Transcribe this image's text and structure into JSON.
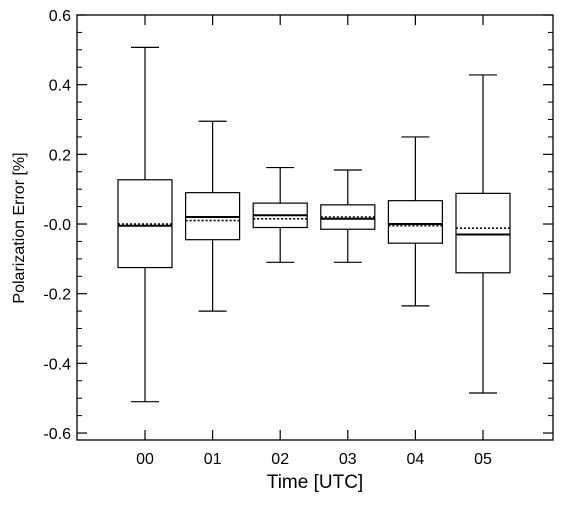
{
  "chart_data": {
    "type": "boxplot",
    "title": "",
    "xlabel": "Time [UTC]",
    "ylabel": "Polarization Error [%]",
    "ylim": [
      -0.62,
      0.6
    ],
    "yticks": [
      0.6,
      0.4,
      0.2,
      0.0,
      -0.2,
      -0.4,
      -0.6
    ],
    "ytick_labels": [
      "0.6",
      "0.4",
      "0.2",
      "-0.0",
      "-0.2",
      "-0.4",
      "-0.6"
    ],
    "y_minor_step": 0.05,
    "grid": false,
    "legend": "none",
    "categories": [
      "00",
      "01",
      "02",
      "03",
      "04",
      "05"
    ],
    "boxes": [
      {
        "category": "00",
        "whisker_low": -0.51,
        "q1": -0.125,
        "median": -0.005,
        "mean": 0.0,
        "q3": 0.127,
        "whisker_high": 0.507
      },
      {
        "category": "01",
        "whisker_low": -0.25,
        "q1": -0.045,
        "median": 0.02,
        "mean": 0.01,
        "q3": 0.09,
        "whisker_high": 0.295
      },
      {
        "category": "02",
        "whisker_low": -0.11,
        "q1": -0.01,
        "median": 0.025,
        "mean": 0.015,
        "q3": 0.06,
        "whisker_high": 0.162
      },
      {
        "category": "03",
        "whisker_low": -0.11,
        "q1": -0.015,
        "median": 0.015,
        "mean": 0.02,
        "q3": 0.055,
        "whisker_high": 0.155
      },
      {
        "category": "04",
        "whisker_low": -0.235,
        "q1": -0.055,
        "median": 0.0,
        "mean": -0.005,
        "q3": 0.067,
        "whisker_high": 0.25
      },
      {
        "category": "05",
        "whisker_low": -0.485,
        "q1": -0.14,
        "median": -0.03,
        "mean": -0.012,
        "q3": 0.088,
        "whisker_high": 0.428
      }
    ],
    "colors": {
      "line": "#000000",
      "background": "#ffffff"
    }
  }
}
